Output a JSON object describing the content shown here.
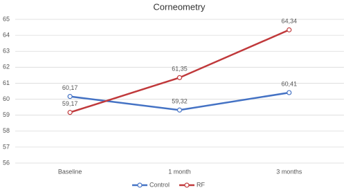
{
  "chart_data": {
    "type": "line",
    "title": "Corneometry",
    "categories": [
      "Baseline",
      "1 month",
      "3 months"
    ],
    "series": [
      {
        "name": "Control",
        "color": "#4472c4",
        "values": [
          60.17,
          59.32,
          60.41
        ],
        "value_labels": [
          "60,17",
          "59,32",
          "60,41"
        ]
      },
      {
        "name": "RF",
        "color": "#c0393b",
        "values": [
          59.17,
          61.35,
          64.34
        ],
        "value_labels": [
          "59,17",
          "61,35",
          "64,34"
        ]
      }
    ],
    "ylim": [
      56,
      65
    ],
    "yticks": [
      56,
      57,
      58,
      59,
      60,
      61,
      62,
      63,
      64,
      65
    ],
    "grid": true,
    "legend": "bottom"
  }
}
